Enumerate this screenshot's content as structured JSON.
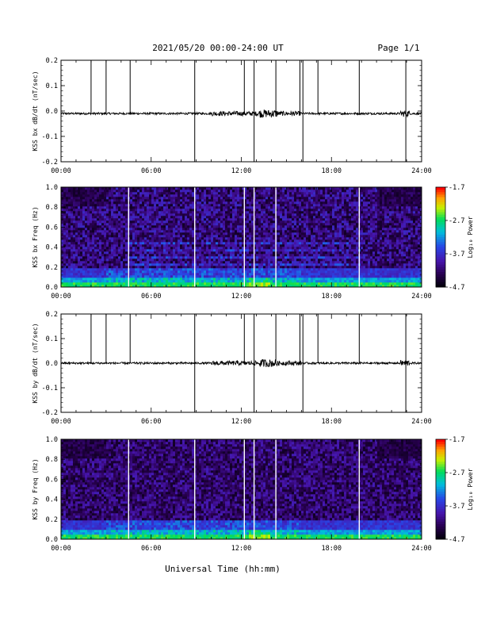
{
  "header": {
    "title": "2021/05/20  00:00-24:00 UT",
    "page": "Page 1/1"
  },
  "footer": {
    "xlabel": "Universal Time (hh:mm)"
  },
  "colors": {
    "trace": "#000000",
    "gap_line": "#ffffff"
  },
  "chart_data": [
    {
      "type": "line",
      "ylabel": "KSS bx dB/dt (nT/sec)",
      "xlabel": "",
      "xlim": [
        0,
        24
      ],
      "ylim": [
        -0.2,
        0.2
      ],
      "yticks": [
        "-0.2",
        "-0.1",
        "0.0",
        "0.1",
        "0.2"
      ],
      "xticks": [
        "00:00",
        "06:00",
        "12:00",
        "18:00",
        "24:00"
      ],
      "baseline": -0.01,
      "spikes": [
        {
          "x": 2.0,
          "y0": -0.01,
          "y1": 0.2
        },
        {
          "x": 3.0,
          "y0": -0.01,
          "y1": 0.2
        },
        {
          "x": 4.6,
          "y0": -0.01,
          "y1": 0.2
        },
        {
          "x": 8.9,
          "y0": -0.2,
          "y1": 0.2
        },
        {
          "x": 12.2,
          "y0": -0.01,
          "y1": 0.2
        },
        {
          "x": 12.85,
          "y0": -0.2,
          "y1": 0.2
        },
        {
          "x": 14.3,
          "y0": -0.01,
          "y1": 0.2
        },
        {
          "x": 15.9,
          "y0": -0.01,
          "y1": 0.2
        },
        {
          "x": 16.1,
          "y0": -0.2,
          "y1": 0.2
        },
        {
          "x": 17.1,
          "y0": -0.01,
          "y1": 0.2
        },
        {
          "x": 19.85,
          "y0": -0.01,
          "y1": 0.2
        },
        {
          "x": 22.95,
          "y0": -0.2,
          "y1": 0.2
        }
      ]
    },
    {
      "type": "heatmap",
      "ylabel": "KSS bx Freq (Hz)",
      "xlim": [
        0,
        24
      ],
      "ylim": [
        0.0,
        1.0
      ],
      "yticks": [
        "0.0",
        "0.2",
        "0.4",
        "0.6",
        "0.8",
        "1.0"
      ],
      "xticks": [
        "00:00",
        "06:00",
        "12:00",
        "18:00",
        "24:00"
      ],
      "colorbar": {
        "label": "Log₁₀ Power",
        "min": -4.7,
        "max": -1.7,
        "ticks": [
          "-1.7",
          "-2.7",
          "-3.7",
          "-4.7"
        ]
      },
      "gaps": [
        4.5,
        8.9,
        12.2,
        12.85,
        14.3,
        19.85
      ]
    },
    {
      "type": "line",
      "ylabel": "KSS by dB/dt (nT/sec)",
      "xlabel": "",
      "xlim": [
        0,
        24
      ],
      "ylim": [
        -0.2,
        0.2
      ],
      "yticks": [
        "-0.2",
        "-0.1",
        "0.0",
        "0.1",
        "0.2"
      ],
      "xticks": [
        "00:00",
        "06:00",
        "12:00",
        "18:00",
        "24:00"
      ],
      "baseline": 0.0,
      "spikes": [
        {
          "x": 2.0,
          "y0": 0.0,
          "y1": 0.2
        },
        {
          "x": 3.0,
          "y0": 0.0,
          "y1": 0.2
        },
        {
          "x": 4.6,
          "y0": 0.0,
          "y1": 0.2
        },
        {
          "x": 8.9,
          "y0": -0.2,
          "y1": 0.2
        },
        {
          "x": 12.2,
          "y0": 0.0,
          "y1": 0.2
        },
        {
          "x": 12.85,
          "y0": -0.2,
          "y1": 0.2
        },
        {
          "x": 14.3,
          "y0": 0.0,
          "y1": 0.2
        },
        {
          "x": 15.9,
          "y0": 0.0,
          "y1": 0.2
        },
        {
          "x": 16.1,
          "y0": -0.2,
          "y1": 0.2
        },
        {
          "x": 17.1,
          "y0": 0.0,
          "y1": 0.2
        },
        {
          "x": 19.85,
          "y0": 0.0,
          "y1": 0.2
        },
        {
          "x": 22.95,
          "y0": -0.2,
          "y1": 0.2
        }
      ]
    },
    {
      "type": "heatmap",
      "ylabel": "KSS by Freq (Hz)",
      "xlim": [
        0,
        24
      ],
      "ylim": [
        0.0,
        1.0
      ],
      "yticks": [
        "0.0",
        "0.2",
        "0.4",
        "0.6",
        "0.8",
        "1.0"
      ],
      "xticks": [
        "00:00",
        "06:00",
        "12:00",
        "18:00",
        "24:00"
      ],
      "colorbar": {
        "label": "Log₁₀ Power",
        "min": -4.7,
        "max": -1.7,
        "ticks": [
          "-1.7",
          "-2.7",
          "-3.7",
          "-4.7"
        ]
      },
      "gaps": [
        4.5,
        8.9,
        12.2,
        12.85,
        14.3,
        19.85
      ]
    }
  ]
}
